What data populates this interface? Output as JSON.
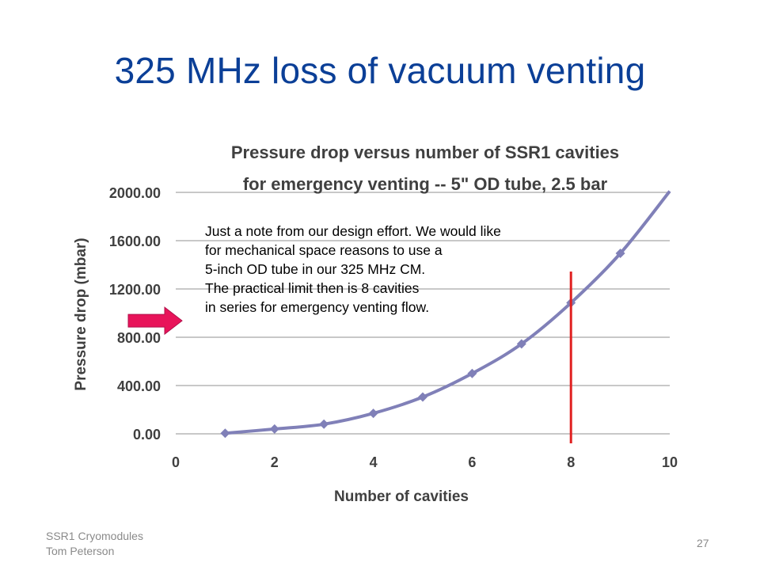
{
  "slide": {
    "title": "325 MHz loss of vacuum venting",
    "footer_line1": "SSR1 Cryomodules",
    "footer_line2": "Tom Peterson",
    "page_number": "27"
  },
  "note": {
    "lines": [
      "Just a note from our design effort.  We would like",
      "for mechanical space reasons to use a",
      "5-inch OD tube in our 325 MHz CM.",
      "The practical limit then is 8 cavities",
      "in series for emergency venting flow."
    ]
  },
  "colors": {
    "title": "#0b3f97",
    "series": "#8080b8",
    "marker_line": "#e02020",
    "arrow": "#e8145a"
  },
  "chart_data": {
    "type": "scatter",
    "title_line1": "Pressure drop versus number of SSR1 cavities",
    "title_line2": "for emergency venting -- 5\" OD tube, 2.5 bar",
    "xlabel": "Number of cavities",
    "ylabel": "Pressure drop (mbar)",
    "xlim": [
      0,
      10
    ],
    "ylim": [
      0,
      2000
    ],
    "x_ticks": [
      "0",
      "2",
      "4",
      "6",
      "8",
      "10"
    ],
    "y_ticks": [
      "0.00",
      "400.00",
      "800.00",
      "1200.00",
      "1600.00",
      "2000.00"
    ],
    "grid": "horizontal",
    "series": [
      {
        "x": [
          1,
          2,
          3,
          4,
          5,
          6,
          7,
          8,
          9,
          10
        ],
        "y": [
          5,
          40,
          80,
          170,
          305,
          500,
          745,
          1085,
          1495,
          2010
        ],
        "line": "smooth",
        "marker": "diamond"
      }
    ],
    "annotations": {
      "vertical_line_x": 8,
      "arrow_points_to_y": 1055
    }
  }
}
